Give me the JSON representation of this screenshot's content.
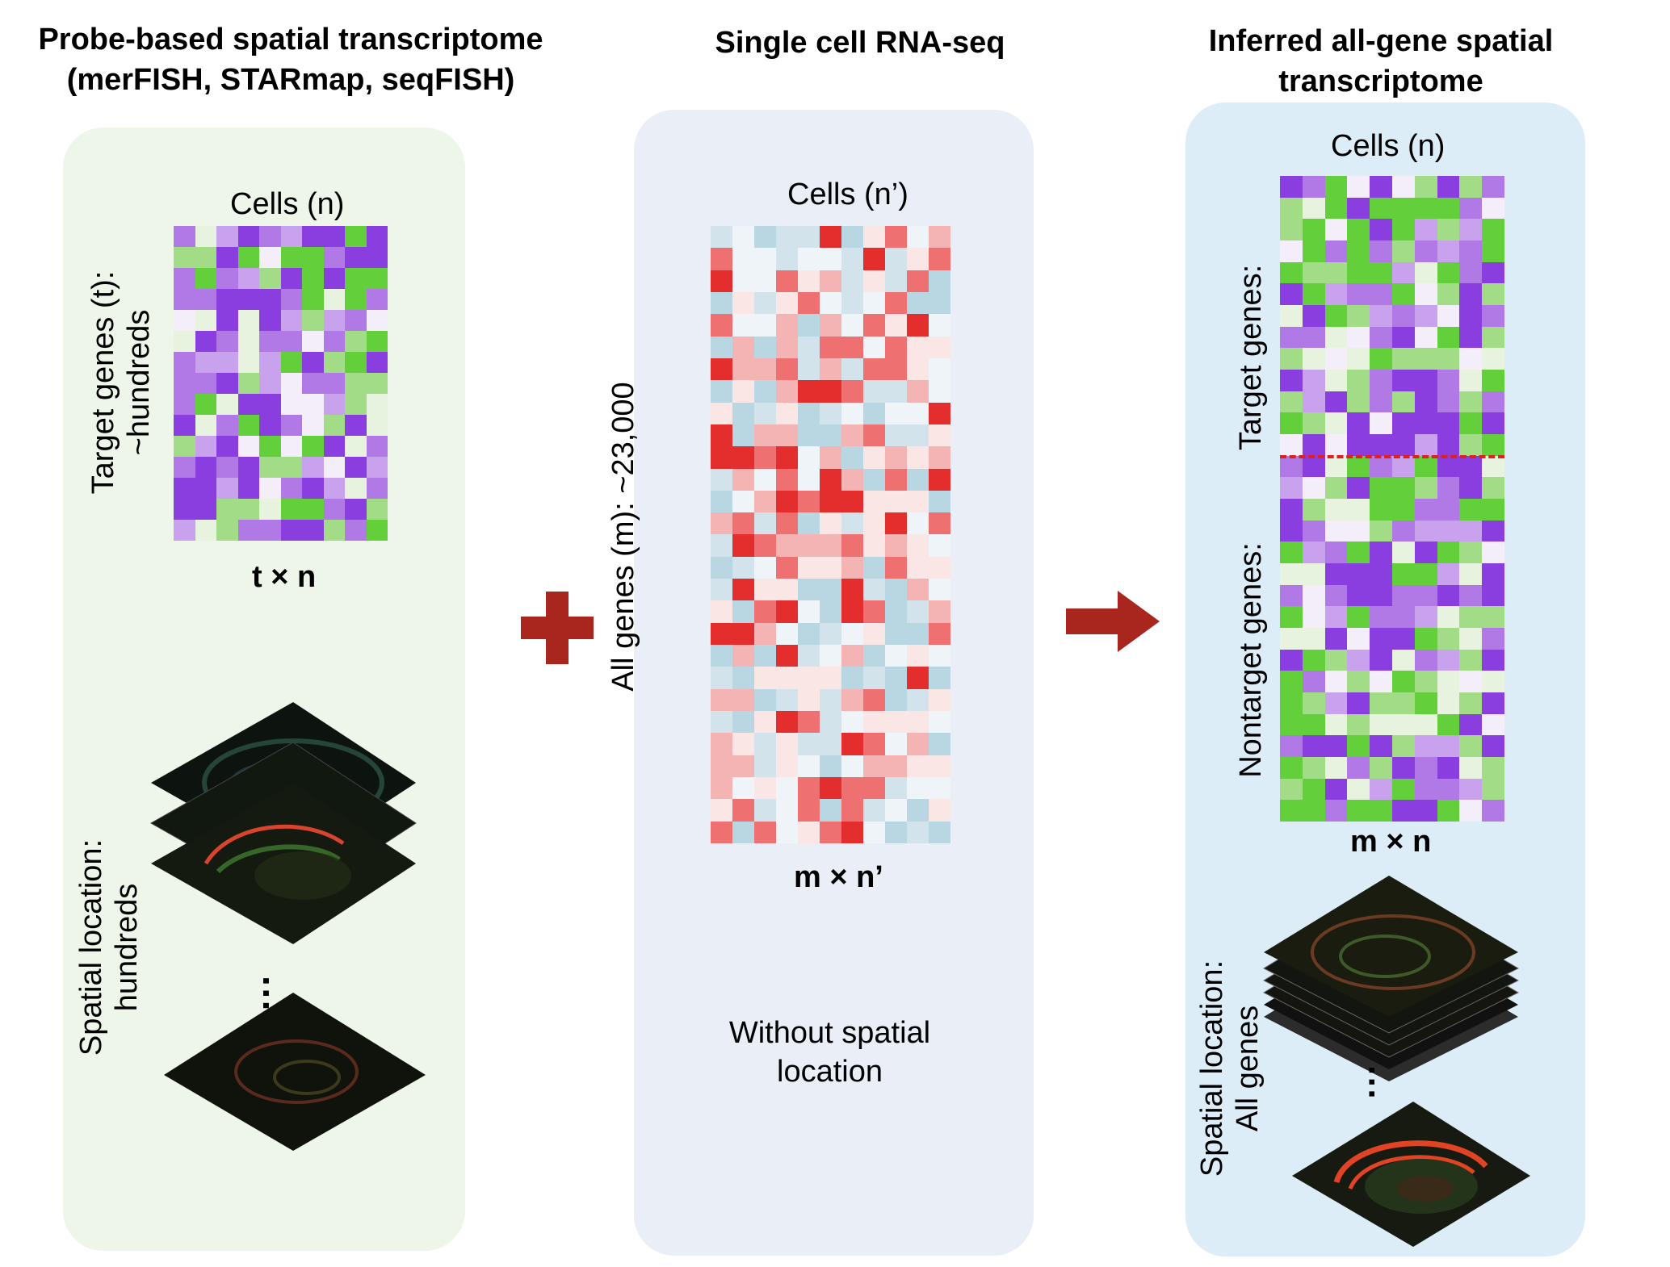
{
  "panels": {
    "left": {
      "title": [
        "Probe-based spatial transcriptome",
        "(merFISH, STARmap, seqFISH)"
      ],
      "cells_label": "Cells (n)",
      "genes_label": [
        "Target genes (t):",
        "~hundreds"
      ],
      "dim_label": "t × n",
      "spatial_label": [
        "Spatial location:",
        "hundreds"
      ],
      "ellipsis": "⋮",
      "bg": "#eef5e9"
    },
    "middle": {
      "title": [
        "Single cell RNA-seq"
      ],
      "cells_label": "Cells (n’)",
      "genes_label": "All genes (m):  ~23,000",
      "dim_label": "m × n’",
      "note": [
        "Without spatial",
        "location"
      ],
      "bg": "#e9eef7"
    },
    "right": {
      "title": [
        "Inferred all-gene spatial",
        "transcriptome"
      ],
      "cells_label": "Cells (n)",
      "target_label": "Target genes:",
      "nontarget_label": "Nontarget genes:",
      "dim_label": "m × n",
      "spatial_label": [
        "Spatial location:",
        "All genes"
      ],
      "ellipsis": "⋮",
      "bg": "#dcedf7"
    }
  },
  "operators": {
    "plus_color": "#a8261e",
    "arrow_color": "#a8261e"
  },
  "colors": {
    "green_purple": [
      "#62cf3b",
      "#a2dc86",
      "#e8f3df",
      "#f4eefa",
      "#c9a2ee",
      "#b079e6",
      "#8a3ee0"
    ],
    "red_blue": [
      "#e42e2e",
      "#ee7070",
      "#f4b4b4",
      "#fbe6e6",
      "#eef4f8",
      "#d2e3ec",
      "#b9d6e3"
    ],
    "divider": "#e02020"
  }
}
